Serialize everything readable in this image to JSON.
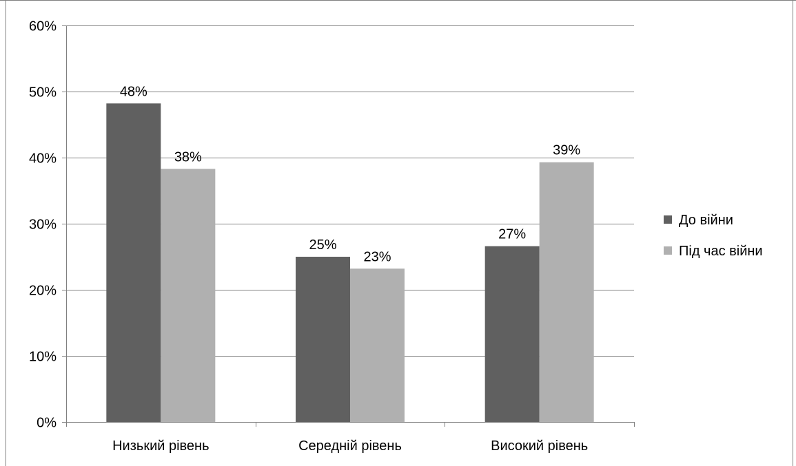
{
  "chart_data": {
    "type": "bar",
    "title": "",
    "xlabel": "",
    "ylabel": "",
    "categories": [
      "Низький рівень",
      "Середній рівень",
      "Високий рівень"
    ],
    "series": [
      {
        "name": "До війни",
        "values": [
          48,
          25,
          27
        ],
        "labels": [
          "48%",
          "25%",
          "27%"
        ],
        "color": "#606060"
      },
      {
        "name": "Під час війни",
        "values": [
          38,
          23,
          39
        ],
        "labels": [
          "38%",
          "23%",
          "39%"
        ],
        "color": "#b0b0b0"
      }
    ],
    "exact_values": [
      [
        48.2,
        25.0,
        26.6
      ],
      [
        38.3,
        23.2,
        39.3
      ]
    ],
    "ylim": [
      0,
      60
    ],
    "yticks": [
      0,
      10,
      20,
      30,
      40,
      50,
      60
    ],
    "ytick_labels": [
      "0%",
      "10%",
      "20%",
      "30%",
      "40%",
      "50%",
      "60%"
    ],
    "grid": true,
    "legend_position": "right",
    "colors": {
      "frame": "#808080",
      "grid": "#808080",
      "axis": "#808080"
    }
  }
}
